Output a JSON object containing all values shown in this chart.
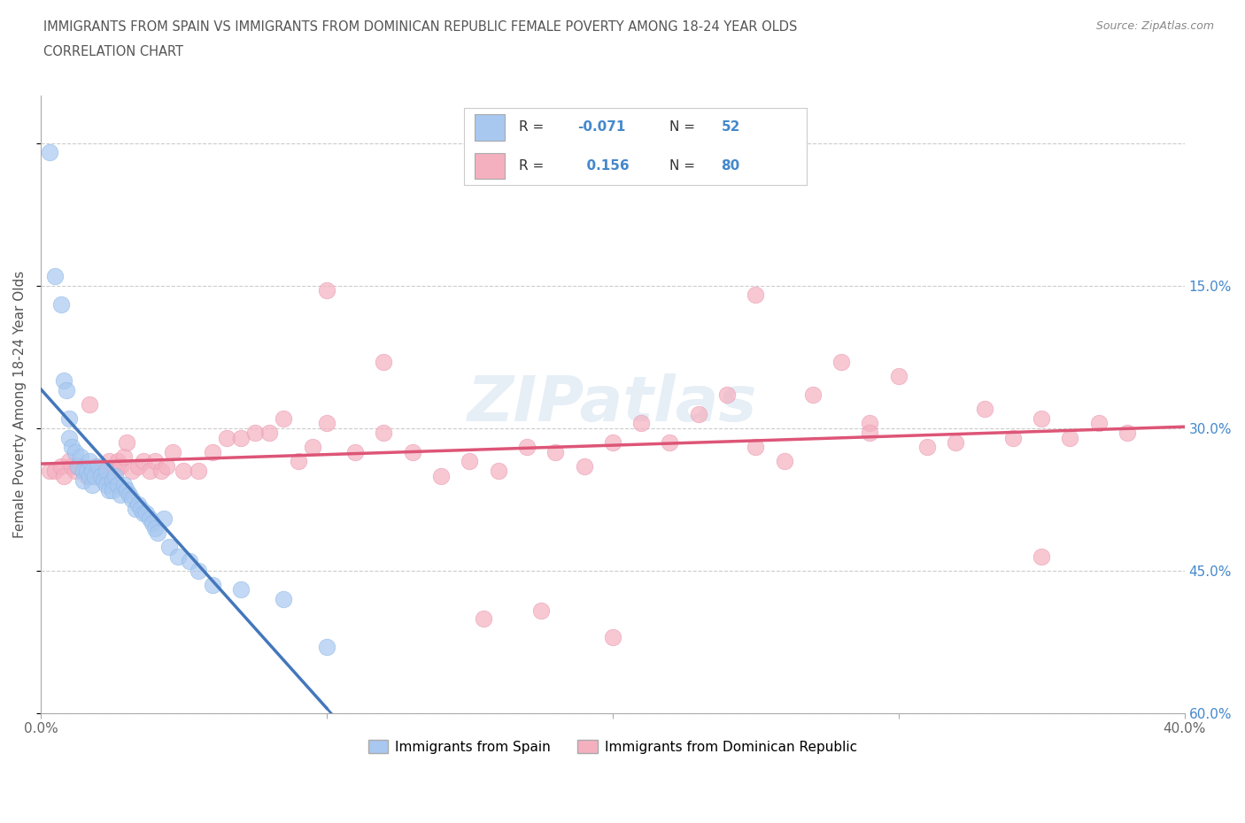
{
  "title_line1": "IMMIGRANTS FROM SPAIN VS IMMIGRANTS FROM DOMINICAN REPUBLIC FEMALE POVERTY AMONG 18-24 YEAR OLDS",
  "title_line2": "CORRELATION CHART",
  "source_text": "Source: ZipAtlas.com",
  "ylabel": "Female Poverty Among 18-24 Year Olds",
  "xlim": [
    0.0,
    0.4
  ],
  "ylim": [
    0.0,
    0.65
  ],
  "xticks": [
    0.0,
    0.1,
    0.2,
    0.3,
    0.4
  ],
  "xticklabels": [
    "0.0%",
    "",
    "",
    "",
    "40.0%"
  ],
  "yticks": [
    0.0,
    0.15,
    0.3,
    0.45,
    0.6
  ],
  "yticklabels": [
    "",
    "",
    "",
    "",
    ""
  ],
  "right_yticks": [
    0.6,
    0.45,
    0.3,
    0.15,
    0.0
  ],
  "right_yticklabels": [
    "60.0%",
    "45.0%",
    "30.0%",
    "15.0%",
    ""
  ],
  "grid_color": "#cccccc",
  "background_color": "#ffffff",
  "spain_color": "#a8c8f0",
  "spain_edge_color": "#8ab8e8",
  "spain_line_color": "#4477bb",
  "dr_color": "#f5b0c0",
  "dr_edge_color": "#e898b0",
  "dr_line_color": "#dd5577",
  "spain_R": -0.071,
  "spain_N": 52,
  "dr_R": 0.156,
  "dr_N": 80,
  "legend_text_color": "#4488cc",
  "watermark": "ZIPatlas",
  "spain_scatter_x": [
    0.003,
    0.005,
    0.007,
    0.008,
    0.009,
    0.01,
    0.01,
    0.011,
    0.012,
    0.013,
    0.014,
    0.015,
    0.015,
    0.016,
    0.017,
    0.017,
    0.018,
    0.018,
    0.019,
    0.02,
    0.021,
    0.022,
    0.023,
    0.023,
    0.024,
    0.025,
    0.025,
    0.026,
    0.027,
    0.028,
    0.029,
    0.03,
    0.031,
    0.032,
    0.033,
    0.034,
    0.035,
    0.036,
    0.037,
    0.038,
    0.039,
    0.04,
    0.041,
    0.043,
    0.045,
    0.048,
    0.052,
    0.055,
    0.06,
    0.07,
    0.085,
    0.1
  ],
  "spain_scatter_y": [
    0.59,
    0.46,
    0.43,
    0.35,
    0.34,
    0.31,
    0.29,
    0.28,
    0.275,
    0.26,
    0.27,
    0.255,
    0.245,
    0.255,
    0.265,
    0.25,
    0.255,
    0.24,
    0.25,
    0.26,
    0.25,
    0.245,
    0.255,
    0.24,
    0.235,
    0.245,
    0.235,
    0.25,
    0.24,
    0.23,
    0.24,
    0.235,
    0.23,
    0.225,
    0.215,
    0.22,
    0.215,
    0.21,
    0.21,
    0.205,
    0.2,
    0.195,
    0.19,
    0.205,
    0.175,
    0.165,
    0.16,
    0.15,
    0.135,
    0.13,
    0.12,
    0.07
  ],
  "dr_scatter_x": [
    0.003,
    0.005,
    0.007,
    0.008,
    0.01,
    0.011,
    0.012,
    0.013,
    0.014,
    0.015,
    0.016,
    0.017,
    0.018,
    0.019,
    0.02,
    0.021,
    0.022,
    0.023,
    0.024,
    0.025,
    0.026,
    0.027,
    0.028,
    0.029,
    0.03,
    0.032,
    0.034,
    0.036,
    0.038,
    0.04,
    0.042,
    0.044,
    0.046,
    0.05,
    0.055,
    0.06,
    0.065,
    0.07,
    0.075,
    0.08,
    0.085,
    0.09,
    0.095,
    0.1,
    0.11,
    0.12,
    0.13,
    0.14,
    0.15,
    0.16,
    0.17,
    0.18,
    0.19,
    0.2,
    0.21,
    0.22,
    0.23,
    0.24,
    0.25,
    0.26,
    0.27,
    0.28,
    0.29,
    0.3,
    0.31,
    0.32,
    0.33,
    0.34,
    0.35,
    0.36,
    0.37,
    0.38,
    0.155,
    0.175,
    0.1,
    0.12,
    0.2,
    0.25,
    0.29,
    0.35
  ],
  "dr_scatter_y": [
    0.255,
    0.255,
    0.26,
    0.25,
    0.265,
    0.26,
    0.255,
    0.26,
    0.26,
    0.255,
    0.25,
    0.325,
    0.255,
    0.26,
    0.255,
    0.255,
    0.25,
    0.255,
    0.265,
    0.255,
    0.255,
    0.265,
    0.26,
    0.27,
    0.285,
    0.255,
    0.26,
    0.265,
    0.255,
    0.265,
    0.255,
    0.26,
    0.275,
    0.255,
    0.255,
    0.275,
    0.29,
    0.29,
    0.295,
    0.295,
    0.31,
    0.265,
    0.28,
    0.305,
    0.275,
    0.295,
    0.275,
    0.25,
    0.265,
    0.255,
    0.28,
    0.275,
    0.26,
    0.285,
    0.305,
    0.285,
    0.315,
    0.335,
    0.28,
    0.265,
    0.335,
    0.37,
    0.305,
    0.355,
    0.28,
    0.285,
    0.32,
    0.29,
    0.31,
    0.29,
    0.305,
    0.295,
    0.1,
    0.108,
    0.445,
    0.37,
    0.08,
    0.44,
    0.295,
    0.165
  ]
}
